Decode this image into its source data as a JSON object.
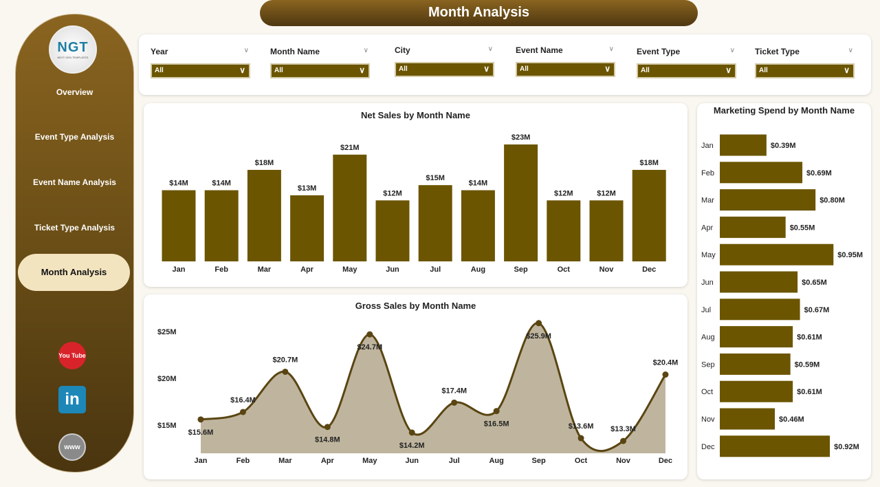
{
  "header": {
    "title": "Month Analysis"
  },
  "sidebar": {
    "logo_text": "NGT",
    "logo_sub": "NEXT GEN TEMPLATES",
    "items": [
      {
        "label": "Overview"
      },
      {
        "label": "Event Type Analysis"
      },
      {
        "label": "Event Name Analysis"
      },
      {
        "label": "Ticket Type Analysis"
      },
      {
        "label": "Month Analysis",
        "active": true
      }
    ],
    "social": [
      {
        "icon": "youtube-icon",
        "label": "You Tube"
      },
      {
        "icon": "linkedin-icon",
        "label": "in"
      },
      {
        "icon": "globe-icon",
        "label": "www"
      }
    ]
  },
  "filters": [
    {
      "label": "Year",
      "value": "All"
    },
    {
      "label": "Month Name",
      "value": "All"
    },
    {
      "label": "City",
      "value": "All"
    },
    {
      "label": "Event Name",
      "value": "All"
    },
    {
      "label": "Event Type",
      "value": "All"
    },
    {
      "label": "Ticket Type",
      "value": "All"
    }
  ],
  "colors": {
    "brand": "#6b5500",
    "area": "#bfb59e",
    "line": "#5a4512"
  },
  "chart_data": [
    {
      "type": "bar",
      "title": "Net Sales by Month Name",
      "categories": [
        "Jan",
        "Feb",
        "Mar",
        "Apr",
        "May",
        "Jun",
        "Jul",
        "Aug",
        "Sep",
        "Oct",
        "Nov",
        "Dec"
      ],
      "values": [
        14,
        14,
        18,
        13,
        21,
        12,
        15,
        14,
        23,
        12,
        12,
        18
      ],
      "labels": [
        "$14M",
        "$14M",
        "$18M",
        "$13M",
        "$21M",
        "$12M",
        "$15M",
        "$14M",
        "$23M",
        "$12M",
        "$12M",
        "$18M"
      ],
      "unit": "M USD"
    },
    {
      "type": "area",
      "title": "Gross Sales by Month Name",
      "categories": [
        "Jan",
        "Feb",
        "Mar",
        "Apr",
        "May",
        "Jun",
        "Jul",
        "Aug",
        "Sep",
        "Oct",
        "Nov",
        "Dec"
      ],
      "values": [
        15.6,
        16.4,
        20.7,
        14.8,
        24.7,
        14.2,
        17.4,
        16.5,
        25.9,
        13.6,
        13.3,
        20.4
      ],
      "labels": [
        "$15.6M",
        "$16.4M",
        "$20.7M",
        "$14.8M",
        "$24.7M",
        "$14.2M",
        "$17.4M",
        "$16.5M",
        "$25.9M",
        "$13.6M",
        "$13.3M",
        "$20.4M"
      ],
      "yticks": [
        "$15M",
        "$20M",
        "$25M"
      ],
      "ytick_values": [
        15,
        20,
        25
      ],
      "ylim": [
        12,
        26
      ]
    },
    {
      "type": "bar",
      "orientation": "horizontal",
      "title": "Marketing Spend by Month Name",
      "categories": [
        "Jan",
        "Feb",
        "Mar",
        "Apr",
        "May",
        "Jun",
        "Jul",
        "Aug",
        "Sep",
        "Oct",
        "Nov",
        "Dec"
      ],
      "values": [
        0.39,
        0.69,
        0.8,
        0.55,
        0.95,
        0.65,
        0.67,
        0.61,
        0.59,
        0.61,
        0.46,
        0.92
      ],
      "labels": [
        "$0.39M",
        "$0.69M",
        "$0.80M",
        "$0.55M",
        "$0.95M",
        "$0.65M",
        "$0.67M",
        "$0.61M",
        "$0.59M",
        "$0.61M",
        "$0.46M",
        "$0.92M"
      ]
    }
  ]
}
